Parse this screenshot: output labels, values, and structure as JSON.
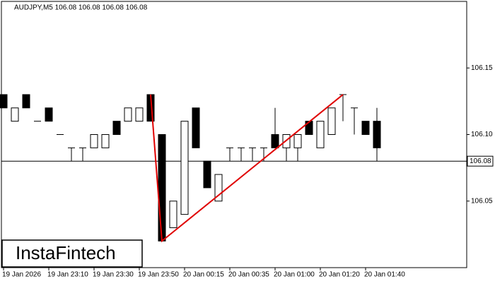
{
  "chart_data": {
    "type": "candlestick",
    "title": "AUDJPY,M5  106.08 106.08 106.08 106.08",
    "categories": [
      "19 Jan 2026",
      null,
      null,
      null,
      "19 Jan 23:10",
      null,
      null,
      null,
      "19 Jan 23:30",
      null,
      null,
      null,
      "19 Jan 23:50",
      null,
      null,
      null,
      "20 Jan 00:15",
      null,
      null,
      null,
      "20 Jan 00:35",
      null,
      null,
      null,
      "20 Jan 01:00",
      null,
      null,
      null,
      "20 Jan 01:20",
      null,
      null,
      null,
      "20 Jan 01:40",
      null
    ],
    "open": [
      106.13,
      106.11,
      106.13,
      106.11,
      106.12,
      106.1,
      106.09,
      106.09,
      106.09,
      106.09,
      106.11,
      106.11,
      106.11,
      106.13,
      106.1,
      106.03,
      106.04,
      106.12,
      106.08,
      106.05,
      106.09,
      106.09,
      106.09,
      106.09,
      106.1,
      106.09,
      106.09,
      106.11,
      106.09,
      106.1,
      106.13,
      106.12,
      106.11,
      106.11
    ],
    "high": [
      106.13,
      106.12,
      106.13,
      106.11,
      106.12,
      106.1,
      106.09,
      106.09,
      106.1,
      106.1,
      106.11,
      106.12,
      106.12,
      106.13,
      106.1,
      106.05,
      106.11,
      106.12,
      106.08,
      106.07,
      106.09,
      106.09,
      106.09,
      106.09,
      106.12,
      106.1,
      106.1,
      106.11,
      106.11,
      106.12,
      106.13,
      106.12,
      106.11,
      106.12
    ],
    "low": [
      106.12,
      106.11,
      106.12,
      106.11,
      106.11,
      106.1,
      106.08,
      106.08,
      106.09,
      106.09,
      106.1,
      106.11,
      106.11,
      106.11,
      106.02,
      106.03,
      106.04,
      106.09,
      106.06,
      106.05,
      106.08,
      106.08,
      106.08,
      106.08,
      106.09,
      106.08,
      106.08,
      106.1,
      106.09,
      106.1,
      106.11,
      106.1,
      106.1,
      106.08
    ],
    "close": [
      106.12,
      106.12,
      106.12,
      106.11,
      106.11,
      106.1,
      106.09,
      106.09,
      106.1,
      106.1,
      106.1,
      106.12,
      106.12,
      106.11,
      106.02,
      106.05,
      106.11,
      106.09,
      106.06,
      106.07,
      106.09,
      106.09,
      106.09,
      106.09,
      106.09,
      106.1,
      106.1,
      106.1,
      106.11,
      106.12,
      106.13,
      106.12,
      106.1,
      106.09
    ],
    "ylim": [
      106.0,
      106.2
    ],
    "yticks": [
      106.05,
      {
        "value": 106.1,
        "label": "106.10"
      },
      106.15
    ],
    "current_price": 106.08,
    "pattern": {
      "color": "#e00000",
      "index": [
        13,
        14,
        30
      ],
      "price": [
        106.13,
        106.02,
        106.13
      ]
    },
    "logo": "InstaFintech"
  }
}
